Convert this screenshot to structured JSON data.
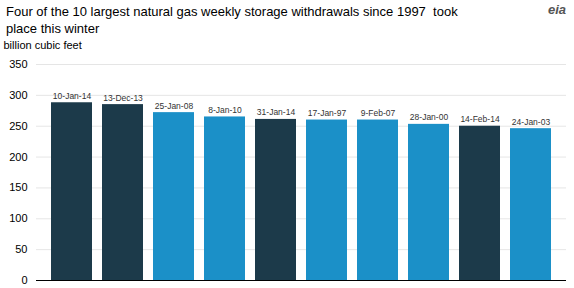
{
  "chart_data": {
    "type": "bar",
    "title": "Four of the 10 largest natural gas weekly storage withdrawals since 1997  took\nplace this winter",
    "ylabel": "billion cubic feet",
    "categories": [
      "10-Jan-14",
      "13-Dec-13",
      "25-Jan-08",
      "8-Jan-10",
      "31-Jan-14",
      "17-Jan-97",
      "9-Feb-07",
      "28-Jan-00",
      "14-Feb-14",
      "24-Jan-03"
    ],
    "values": [
      288,
      285,
      272,
      265,
      261,
      260,
      260,
      253,
      250,
      246
    ],
    "colors": [
      "#1c3a4a",
      "#1c3a4a",
      "#1b90c8",
      "#1b90c8",
      "#1c3a4a",
      "#1b90c8",
      "#1b90c8",
      "#1b90c8",
      "#1c3a4a",
      "#1b90c8"
    ],
    "ylim": [
      0,
      350
    ],
    "yticks": [
      0,
      50,
      100,
      150,
      200,
      250,
      300,
      350
    ],
    "grid": true,
    "tick_labels": "y",
    "annotations": [
      {
        "text": "eia"
      }
    ]
  }
}
